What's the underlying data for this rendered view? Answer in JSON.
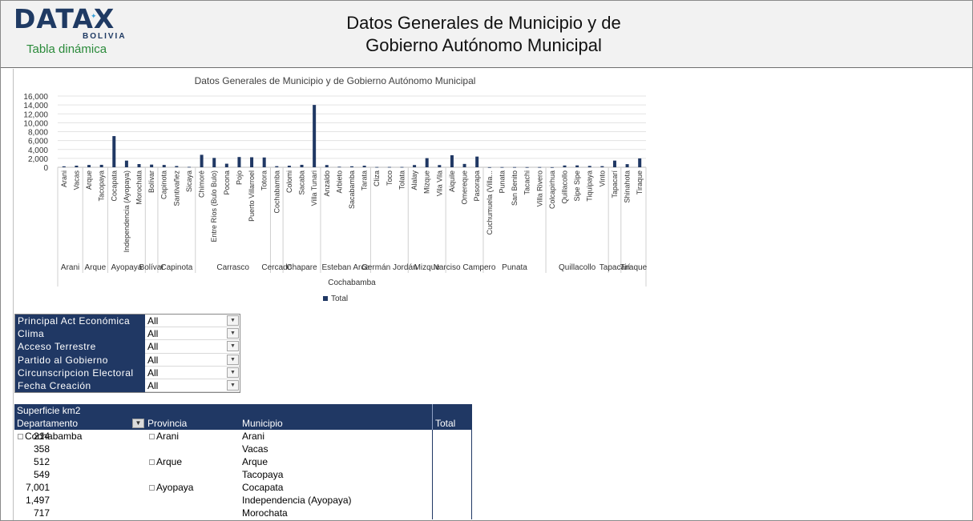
{
  "header": {
    "logo_main": "DATAX",
    "logo_country": "BOLIVIA",
    "logo_sub": "Tabla dinámica",
    "title_line1": "Datos Generales de Municipio y de",
    "title_line2": "Gobierno Autónomo Municipal"
  },
  "colors": {
    "bar": "#203864",
    "header_bg": "#203864",
    "logo": "#1f3a63",
    "logo_sub": "#2a8a3a"
  },
  "chart_data": {
    "type": "bar",
    "title": "Datos Generales de Municipio y de Gobierno Autónomo Municipal",
    "ylim": [
      0,
      16000
    ],
    "yticks": [
      "0",
      "2,000",
      "4,000",
      "6,000",
      "8,000",
      "10,000",
      "12,000",
      "14,000",
      "16,000"
    ],
    "grid": true,
    "legend": "bottom",
    "series": [
      {
        "name": "Total"
      }
    ],
    "categories": [
      "Arani",
      "Vacas",
      "Arque",
      "Tacopaya",
      "Cocapata",
      "Independencia (Ayopaya)",
      "Morochata",
      "Bolívar",
      "Capinota",
      "Santivañez",
      "Sicaya",
      "Chimoré",
      "Entre Ríos (Bulo Bulo)",
      "Pocona",
      "Pojo",
      "Puerto Villarroel",
      "Totora",
      "Cochabamba",
      "Colomi",
      "Sacaba",
      "Villa Tunari",
      "Anzaldo",
      "Arbieto",
      "Sacabamba",
      "Tarata",
      "Cliza",
      "Toco",
      "Tolata",
      "Alalay",
      "Mizque",
      "Vila Vila",
      "Aiquile",
      "Omereque",
      "Pasorapa",
      "Cuchumuela (Villa...",
      "Punata",
      "San Benito",
      "Tacachi",
      "Villa Rivero",
      "Colcapirhua",
      "Quillacollo",
      "Sipe Sipe",
      "Tiquipaya",
      "Vinto",
      "Tapacarí",
      "Shinahota",
      "Tiraque"
    ],
    "values": [
      214,
      358,
      512,
      549,
      7001,
      1497,
      717,
      600,
      520,
      280,
      90,
      2800,
      2100,
      800,
      2300,
      2250,
      2200,
      250,
      350,
      550,
      14000,
      500,
      120,
      220,
      350,
      60,
      70,
      70,
      500,
      2050,
      500,
      2700,
      750,
      2400,
      20,
      40,
      40,
      30,
      40,
      20,
      400,
      420,
      300,
      250,
      1500,
      700,
      2000
    ],
    "provinces": [
      {
        "name": "Arani",
        "start": 0,
        "end": 1
      },
      {
        "name": "Arque",
        "start": 2,
        "end": 3
      },
      {
        "name": "Ayopaya",
        "start": 4,
        "end": 6
      },
      {
        "name": "Bolívar",
        "start": 7,
        "end": 7
      },
      {
        "name": "Capinota",
        "start": 8,
        "end": 10
      },
      {
        "name": "Carrasco",
        "start": 11,
        "end": 16
      },
      {
        "name": "Cercado",
        "start": 17,
        "end": 17
      },
      {
        "name": "Chapare",
        "start": 18,
        "end": 20
      },
      {
        "name": "Esteban Arce",
        "start": 21,
        "end": 24
      },
      {
        "name": "Germán Jordán",
        "start": 25,
        "end": 27
      },
      {
        "name": "Mizque",
        "start": 28,
        "end": 30
      },
      {
        "name": "Narciso Campero",
        "start": 31,
        "end": 33
      },
      {
        "name": "Punata",
        "start": 34,
        "end": 38
      },
      {
        "name": "Quillacollo",
        "start": 39,
        "end": 43
      },
      {
        "name": "Tapacarí",
        "start": 44,
        "end": 44
      },
      {
        "name": "Tiraque",
        "start": 45,
        "end": 46
      }
    ],
    "department": "Cochabamba"
  },
  "filters": [
    {
      "label": "Principal Act Económica",
      "value": "All"
    },
    {
      "label": "Clima",
      "value": "All"
    },
    {
      "label": "Acceso Terrestre",
      "value": "All"
    },
    {
      "label": "Partido al Gobierno",
      "value": "All"
    },
    {
      "label": "Circunscripcion Electoral",
      "value": "All"
    },
    {
      "label": "Fecha Creación",
      "value": "All"
    }
  ],
  "pivot": {
    "measure": "Superficie km2",
    "col_departamento": "Departamento",
    "col_provincia": "Provincia",
    "col_municipio": "Municipio",
    "col_total": "Total",
    "rows": [
      {
        "dep": "Cochabamba",
        "prov": "Arani",
        "mun": "Arani",
        "total": "214"
      },
      {
        "dep": "",
        "prov": "",
        "mun": "Vacas",
        "total": "358"
      },
      {
        "dep": "",
        "prov": "Arque",
        "mun": "Arque",
        "total": "512"
      },
      {
        "dep": "",
        "prov": "",
        "mun": "Tacopaya",
        "total": "549"
      },
      {
        "dep": "",
        "prov": "Ayopaya",
        "mun": "Cocapata",
        "total": "7,001"
      },
      {
        "dep": "",
        "prov": "",
        "mun": "Independencia (Ayopaya)",
        "total": "1,497"
      },
      {
        "dep": "",
        "prov": "",
        "mun": "Morochata",
        "total": "717"
      }
    ]
  }
}
